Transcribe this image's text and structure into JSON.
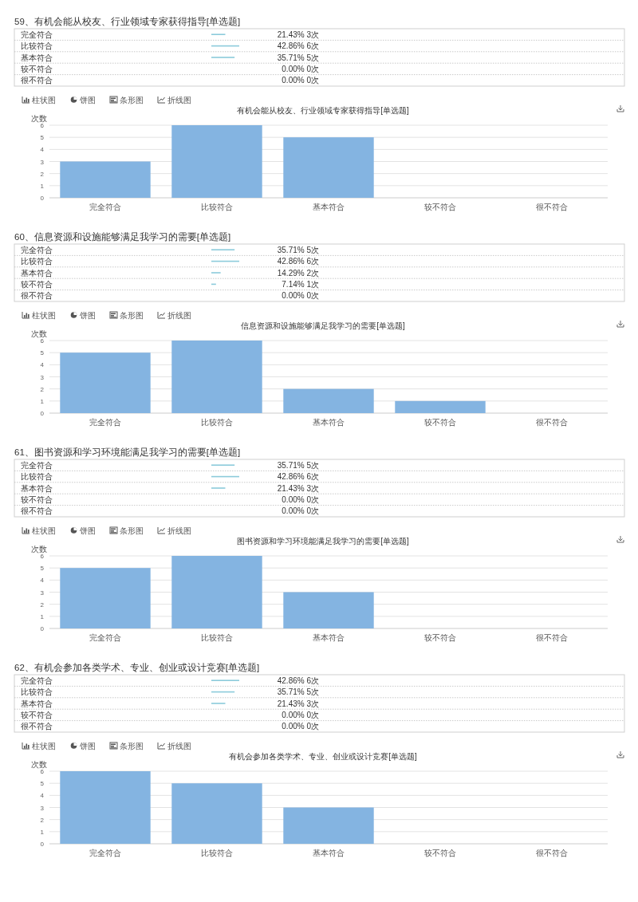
{
  "chart_data": [
    {
      "type": "bar",
      "orientation": "horizontal",
      "title": "59、有机会能从校友、行业领域专家获得指导[单选题]",
      "categories": [
        "完全符合",
        "比较符合",
        "基本符合",
        "较不符合",
        "很不符合"
      ],
      "values": [
        21.43,
        42.86,
        35.71,
        0,
        0
      ],
      "value_labels": [
        "21.43% 3次",
        "42.86% 6次",
        "35.71% 5次",
        "0.00% 0次",
        "0.00% 0次"
      ],
      "color": "#8ccbdb"
    },
    {
      "type": "bar",
      "title": "有机会能从校友、行业领域专家获得指导[单选题]",
      "ylabel": "次数",
      "categories": [
        "完全符合",
        "比较符合",
        "基本符合",
        "较不符合",
        "很不符合"
      ],
      "values": [
        3,
        6,
        5,
        0,
        0
      ],
      "color": "#84b4e1",
      "ylim": [
        0,
        6
      ],
      "yticks": [
        0,
        1,
        2,
        3,
        4,
        5,
        6
      ],
      "grid": "y",
      "annotations": [
        "柱状图",
        "饼图",
        "条形图",
        "折线图"
      ]
    },
    {
      "type": "bar",
      "orientation": "horizontal",
      "title": "60、信息资源和设施能够满足我学习的需要[单选题]",
      "categories": [
        "完全符合",
        "比较符合",
        "基本符合",
        "较不符合",
        "很不符合"
      ],
      "values": [
        35.71,
        42.86,
        14.29,
        7.14,
        0
      ],
      "value_labels": [
        "35.71% 5次",
        "42.86% 6次",
        "14.29% 2次",
        "7.14% 1次",
        "0.00% 0次"
      ],
      "color": "#8ccbdb"
    },
    {
      "type": "bar",
      "title": "信息资源和设施能够满足我学习的需要[单选题]",
      "ylabel": "次数",
      "categories": [
        "完全符合",
        "比较符合",
        "基本符合",
        "较不符合",
        "很不符合"
      ],
      "values": [
        5,
        6,
        2,
        1,
        0
      ],
      "color": "#84b4e1",
      "ylim": [
        0,
        6
      ],
      "yticks": [
        0,
        1,
        2,
        3,
        4,
        5,
        6
      ],
      "grid": "y",
      "annotations": [
        "柱状图",
        "饼图",
        "条形图",
        "折线图"
      ]
    },
    {
      "type": "bar",
      "orientation": "horizontal",
      "title": "61、图书资源和学习环境能满足我学习的需要[单选题]",
      "categories": [
        "完全符合",
        "比较符合",
        "基本符合",
        "较不符合",
        "很不符合"
      ],
      "values": [
        35.71,
        42.86,
        21.43,
        0,
        0
      ],
      "value_labels": [
        "35.71% 5次",
        "42.86% 6次",
        "21.43% 3次",
        "0.00% 0次",
        "0.00% 0次"
      ],
      "color": "#8ccbdb"
    },
    {
      "type": "bar",
      "title": "图书资源和学习环境能满足我学习的需要[单选题]",
      "ylabel": "次数",
      "categories": [
        "完全符合",
        "比较符合",
        "基本符合",
        "较不符合",
        "很不符合"
      ],
      "values": [
        5,
        6,
        3,
        0,
        0
      ],
      "color": "#84b4e1",
      "ylim": [
        0,
        6
      ],
      "yticks": [
        0,
        1,
        2,
        3,
        4,
        5,
        6
      ],
      "grid": "y",
      "annotations": [
        "柱状图",
        "饼图",
        "条形图",
        "折线图"
      ]
    },
    {
      "type": "bar",
      "orientation": "horizontal",
      "title": "62、有机会参加各类学术、专业、创业或设计竞赛[单选题]",
      "categories": [
        "完全符合",
        "比较符合",
        "基本符合",
        "较不符合",
        "很不符合"
      ],
      "values": [
        42.86,
        35.71,
        21.43,
        0,
        0
      ],
      "value_labels": [
        "42.86% 6次",
        "35.71% 5次",
        "21.43% 3次",
        "0.00% 0次",
        "0.00% 0次"
      ],
      "color": "#8ccbdb"
    },
    {
      "type": "bar",
      "title": "有机会参加各类学术、专业、创业或设计竞赛[单选题]",
      "ylabel": "次数",
      "categories": [
        "完全符合",
        "比较符合",
        "基本符合",
        "较不符合",
        "很不符合"
      ],
      "values": [
        6,
        5,
        3,
        0,
        0
      ],
      "color": "#84b4e1",
      "ylim": [
        0,
        6
      ],
      "yticks": [
        0,
        1,
        2,
        3,
        4,
        5,
        6
      ],
      "grid": "y",
      "annotations": [
        "柱状图",
        "饼图",
        "条形图",
        "折线图"
      ]
    }
  ]
}
